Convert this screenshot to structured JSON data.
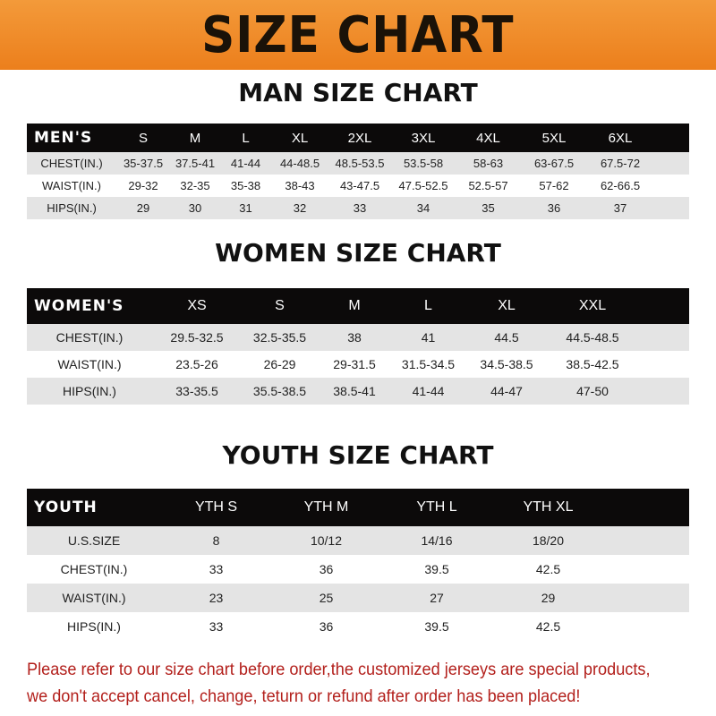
{
  "banner": "SIZE CHART",
  "men": {
    "title": "MAN SIZE CHART",
    "header": [
      "MEN'S",
      "S",
      "M",
      "L",
      "XL",
      "2XL",
      "3XL",
      "4XL",
      "5XL",
      "6XL"
    ],
    "rows": [
      [
        "CHEST(IN.)",
        "35-37.5",
        "37.5-41",
        "41-44",
        "44-48.5",
        "48.5-53.5",
        "53.5-58",
        "58-63",
        "63-67.5",
        "67.5-72"
      ],
      [
        "WAIST(IN.)",
        "29-32",
        "32-35",
        "35-38",
        "38-43",
        "43-47.5",
        "47.5-52.5",
        "52.5-57",
        "57-62",
        "62-66.5"
      ],
      [
        "HIPS(IN.)",
        "29",
        "30",
        "31",
        "32",
        "33",
        "34",
        "35",
        "36",
        "37"
      ]
    ]
  },
  "women": {
    "title": "WOMEN SIZE CHART",
    "header": [
      "WOMEN'S",
      "XS",
      "S",
      "M",
      "L",
      "XL",
      "XXL"
    ],
    "rows": [
      [
        "CHEST(IN.)",
        "29.5-32.5",
        "32.5-35.5",
        "38",
        "41",
        "44.5",
        "44.5-48.5"
      ],
      [
        "WAIST(IN.)",
        "23.5-26",
        "26-29",
        "29-31.5",
        "31.5-34.5",
        "34.5-38.5",
        "38.5-42.5"
      ],
      [
        "HIPS(IN.)",
        "33-35.5",
        "35.5-38.5",
        "38.5-41",
        "41-44",
        "44-47",
        "47-50"
      ]
    ]
  },
  "youth": {
    "title": "YOUTH SIZE CHART",
    "header": [
      "YOUTH",
      "YTH S",
      "YTH M",
      "YTH L",
      "YTH XL"
    ],
    "rows": [
      [
        "U.S.SIZE",
        "8",
        "10/12",
        "14/16",
        "18/20"
      ],
      [
        "CHEST(IN.)",
        "33",
        "36",
        "39.5",
        "42.5"
      ],
      [
        "WAIST(IN.)",
        "23",
        "25",
        "27",
        "29"
      ],
      [
        "HIPS(IN.)",
        "33",
        "36",
        "39.5",
        "42.5"
      ]
    ]
  },
  "footer": {
    "line1": "Please refer to our size chart before order,the customized jerseys are special products,",
    "line2": "we don't accept cancel, change, teturn or refund after order has been placed!"
  }
}
